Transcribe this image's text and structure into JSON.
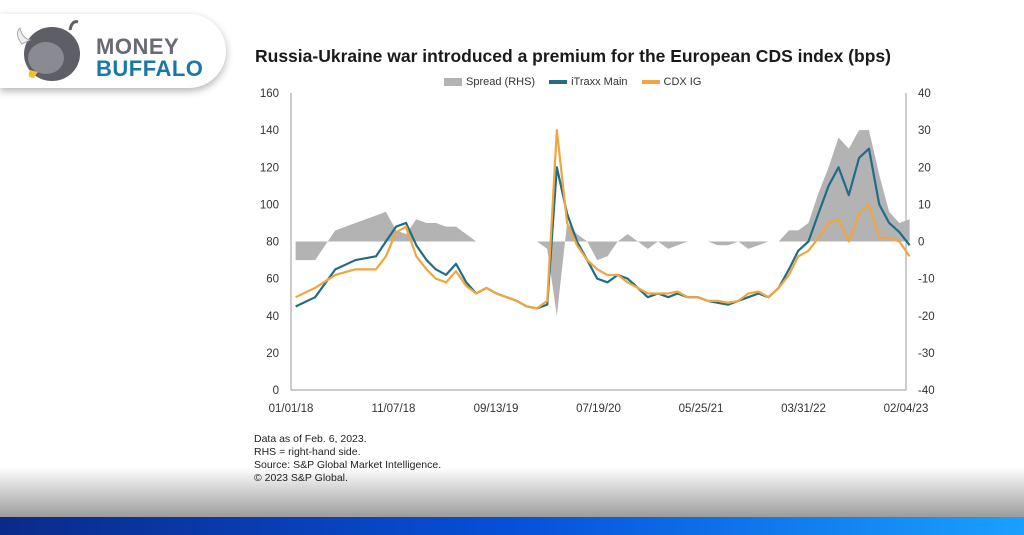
{
  "brand": {
    "line1": "MONEY",
    "line2": "BUFFALO"
  },
  "chart_data": {
    "type": "line",
    "title": "Russia-Ukraine war introduced a premium for the European CDS index (bps)",
    "legend": [
      "Spread (RHS)",
      "iTraxx Main",
      "CDX IG"
    ],
    "legend_position": "top-center",
    "colors": {
      "spread": "#b3b3b3",
      "itraxx": "#1f6e86",
      "cdx": "#f0a640"
    },
    "x_tick_labels": [
      "01/01/18",
      "11/07/18",
      "09/13/19",
      "07/19/20",
      "05/25/21",
      "03/31/22",
      "02/04/23"
    ],
    "y_left": {
      "range": [
        0,
        160
      ],
      "ticks": [
        0,
        20,
        40,
        60,
        80,
        100,
        120,
        140,
        160
      ]
    },
    "y_right": {
      "range": [
        -40,
        40
      ],
      "ticks": [
        -40,
        -30,
        -20,
        -10,
        0,
        10,
        20,
        30,
        40
      ]
    },
    "x": [
      "2018-01",
      "2018-03",
      "2018-05",
      "2018-07",
      "2018-09",
      "2018-10",
      "2018-11",
      "2018-12",
      "2019-01",
      "2019-02",
      "2019-03",
      "2019-04",
      "2019-05",
      "2019-06",
      "2019-07",
      "2019-08",
      "2019-09",
      "2019-10",
      "2019-11",
      "2019-12",
      "2020-01",
      "2020-02",
      "2020-03",
      "2020-04",
      "2020-05",
      "2020-06",
      "2020-07",
      "2020-08",
      "2020-09",
      "2020-10",
      "2020-11",
      "2020-12",
      "2021-01",
      "2021-02",
      "2021-03",
      "2021-04",
      "2021-05",
      "2021-06",
      "2021-07",
      "2021-08",
      "2021-09",
      "2021-10",
      "2021-11",
      "2021-12",
      "2022-01",
      "2022-02",
      "2022-03",
      "2022-04",
      "2022-05",
      "2022-06",
      "2022-07",
      "2022-08",
      "2022-09",
      "2022-10",
      "2022-11",
      "2022-12",
      "2023-01",
      "2023-02"
    ],
    "series": [
      {
        "name": "iTraxx Main",
        "axis": "left",
        "values": [
          45,
          50,
          65,
          70,
          72,
          80,
          88,
          90,
          78,
          70,
          65,
          62,
          68,
          58,
          52,
          55,
          52,
          50,
          48,
          45,
          44,
          46,
          120,
          95,
          80,
          70,
          60,
          58,
          62,
          60,
          55,
          50,
          52,
          50,
          52,
          50,
          50,
          48,
          47,
          46,
          48,
          50,
          52,
          50,
          55,
          65,
          75,
          80,
          95,
          110,
          120,
          105,
          125,
          130,
          100,
          90,
          85,
          78
        ]
      },
      {
        "name": "CDX IG",
        "axis": "left",
        "values": [
          50,
          55,
          62,
          65,
          65,
          72,
          85,
          88,
          72,
          65,
          60,
          58,
          64,
          56,
          52,
          55,
          52,
          50,
          48,
          45,
          44,
          48,
          140,
          90,
          78,
          70,
          65,
          62,
          62,
          58,
          55,
          52,
          52,
          52,
          53,
          50,
          50,
          48,
          48,
          47,
          48,
          52,
          53,
          50,
          55,
          62,
          72,
          75,
          82,
          90,
          92,
          80,
          95,
          100,
          82,
          82,
          80,
          72
        ]
      },
      {
        "name": "Spread (RHS)",
        "axis": "right",
        "values": [
          -5,
          -5,
          3,
          5,
          7,
          8,
          3,
          2,
          6,
          5,
          5,
          4,
          4,
          2,
          0,
          0,
          0,
          0,
          0,
          0,
          0,
          -2,
          -20,
          5,
          2,
          0,
          -5,
          -4,
          0,
          2,
          0,
          -2,
          0,
          -2,
          -1,
          0,
          0,
          0,
          -1,
          -1,
          0,
          -2,
          -1,
          0,
          0,
          3,
          3,
          5,
          13,
          20,
          28,
          25,
          30,
          30,
          18,
          8,
          5,
          6
        ]
      }
    ]
  },
  "notes": [
    "Data as of Feb. 6, 2023.",
    "RHS = right-hand side.",
    "Source: S&P Global Market Intelligence.",
    "© 2023 S&P Global."
  ]
}
